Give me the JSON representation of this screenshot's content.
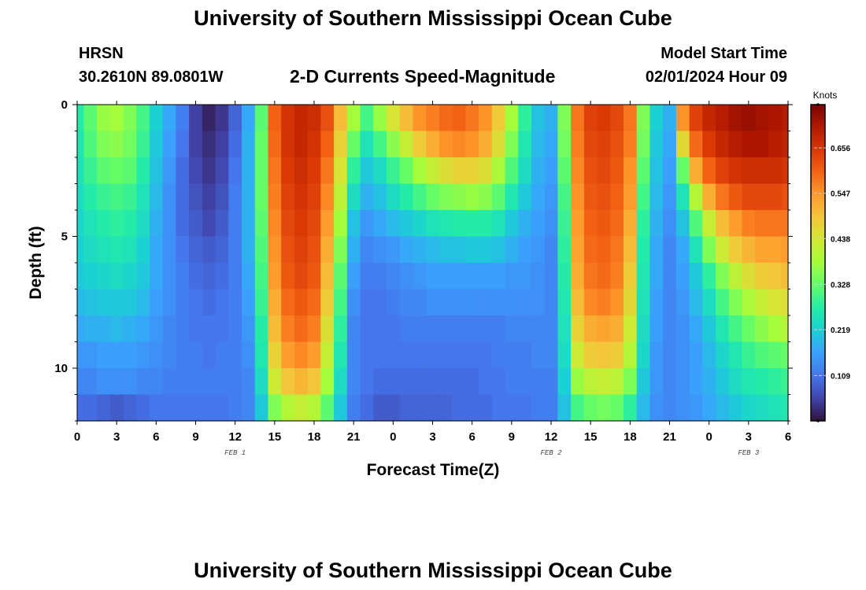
{
  "page": {
    "title_top": "University of Southern Mississippi Ocean Cube",
    "title_bottom": "University of Southern Mississippi Ocean Cube",
    "station": "HRSN",
    "coords": "30.2610N  89.0801W",
    "plot_title": "2-D Currents Speed-Magnitude",
    "model_label": "Model Start Time",
    "model_time": "02/01/2024 Hour 09"
  },
  "chart_data": {
    "type": "heatmap",
    "title": "2-D Currents Speed-Magnitude",
    "xlabel": "Forecast Time(Z)",
    "ylabel": "Depth (ft)",
    "x_tick_labels": [
      "0",
      "3",
      "6",
      "9",
      "12",
      "15",
      "18",
      "21",
      "0",
      "3",
      "6",
      "9",
      "12",
      "15",
      "18",
      "21",
      "0",
      "3",
      "6"
    ],
    "x_day_labels": [
      {
        "label": "FEB 1",
        "hour": 12
      },
      {
        "label": "FEB 2",
        "hour": 36
      },
      {
        "label": "FEB 3",
        "hour": 51
      }
    ],
    "x_range_hours": [
      0,
      54
    ],
    "y_ticks": [
      0,
      5,
      10
    ],
    "y_range_ft": [
      0,
      12
    ],
    "y_inverted": true,
    "colorbar_unit": "Knots",
    "colorbar_ticks": [
      0.109,
      0.219,
      0.328,
      0.438,
      0.547,
      0.656
    ],
    "value_range": [
      0.0,
      0.76
    ],
    "colormap": [
      "#30123b",
      "#4145ab",
      "#4675ed",
      "#39a2fc",
      "#1bcfd4",
      "#24eca6",
      "#61fc6c",
      "#a4fc3b",
      "#d1e834",
      "#f3c63a",
      "#fe9b2d",
      "#f36315",
      "#d93806",
      "#b11901",
      "#7a0402"
    ],
    "grid_rows_depth": "12 layers from 0 to 12 ft",
    "grid_cols_time": "hourly from 0 to 54 h",
    "speed_matrix_by_depth_knots": {
      "0.5": [
        0.27,
        0.32,
        0.37,
        0.38,
        0.35,
        0.3,
        0.22,
        0.17,
        0.12,
        0.05,
        0.02,
        0.04,
        0.09,
        0.17,
        0.32,
        0.6,
        0.66,
        0.68,
        0.67,
        0.62,
        0.5,
        0.38,
        0.3,
        0.37,
        0.44,
        0.5,
        0.55,
        0.57,
        0.59,
        0.6,
        0.58,
        0.55,
        0.48,
        0.38,
        0.28,
        0.2,
        0.18,
        0.35,
        0.58,
        0.64,
        0.65,
        0.63,
        0.58,
        0.35,
        0.22,
        0.18,
        0.55,
        0.64,
        0.68,
        0.7,
        0.72,
        0.73,
        0.72,
        0.71,
        0.7
      ],
      "1.5": [
        0.26,
        0.31,
        0.35,
        0.36,
        0.34,
        0.29,
        0.21,
        0.16,
        0.11,
        0.05,
        0.03,
        0.05,
        0.1,
        0.18,
        0.33,
        0.59,
        0.66,
        0.68,
        0.66,
        0.6,
        0.47,
        0.33,
        0.25,
        0.3,
        0.36,
        0.42,
        0.48,
        0.52,
        0.55,
        0.56,
        0.55,
        0.52,
        0.45,
        0.35,
        0.26,
        0.19,
        0.17,
        0.34,
        0.57,
        0.63,
        0.64,
        0.62,
        0.57,
        0.34,
        0.21,
        0.17,
        0.46,
        0.59,
        0.65,
        0.68,
        0.7,
        0.71,
        0.71,
        0.7,
        0.69
      ],
      "2.5": [
        0.25,
        0.29,
        0.32,
        0.33,
        0.32,
        0.27,
        0.2,
        0.15,
        0.1,
        0.06,
        0.04,
        0.06,
        0.11,
        0.18,
        0.33,
        0.58,
        0.65,
        0.67,
        0.65,
        0.58,
        0.44,
        0.28,
        0.21,
        0.24,
        0.29,
        0.33,
        0.38,
        0.42,
        0.45,
        0.47,
        0.47,
        0.45,
        0.39,
        0.31,
        0.24,
        0.18,
        0.16,
        0.32,
        0.56,
        0.62,
        0.63,
        0.61,
        0.55,
        0.32,
        0.2,
        0.16,
        0.33,
        0.52,
        0.6,
        0.64,
        0.66,
        0.67,
        0.67,
        0.67,
        0.66
      ],
      "3.5": [
        0.24,
        0.27,
        0.29,
        0.3,
        0.29,
        0.25,
        0.19,
        0.14,
        0.1,
        0.07,
        0.05,
        0.07,
        0.12,
        0.18,
        0.33,
        0.57,
        0.64,
        0.66,
        0.64,
        0.56,
        0.41,
        0.24,
        0.18,
        0.2,
        0.24,
        0.27,
        0.3,
        0.33,
        0.35,
        0.36,
        0.37,
        0.36,
        0.32,
        0.26,
        0.21,
        0.17,
        0.15,
        0.3,
        0.55,
        0.61,
        0.62,
        0.6,
        0.54,
        0.3,
        0.19,
        0.15,
        0.25,
        0.4,
        0.52,
        0.58,
        0.61,
        0.63,
        0.63,
        0.63,
        0.62
      ],
      "4.5": [
        0.23,
        0.25,
        0.27,
        0.28,
        0.27,
        0.24,
        0.18,
        0.14,
        0.1,
        0.08,
        0.06,
        0.08,
        0.12,
        0.18,
        0.32,
        0.56,
        0.63,
        0.65,
        0.63,
        0.54,
        0.38,
        0.2,
        0.15,
        0.17,
        0.19,
        0.21,
        0.23,
        0.25,
        0.26,
        0.27,
        0.27,
        0.27,
        0.25,
        0.21,
        0.18,
        0.16,
        0.14,
        0.29,
        0.54,
        0.6,
        0.61,
        0.59,
        0.52,
        0.28,
        0.18,
        0.14,
        0.2,
        0.31,
        0.42,
        0.5,
        0.54,
        0.57,
        0.58,
        0.58,
        0.58
      ],
      "5.5": [
        0.22,
        0.24,
        0.25,
        0.26,
        0.25,
        0.22,
        0.17,
        0.14,
        0.11,
        0.09,
        0.08,
        0.09,
        0.12,
        0.18,
        0.31,
        0.55,
        0.62,
        0.64,
        0.62,
        0.52,
        0.35,
        0.18,
        0.13,
        0.14,
        0.15,
        0.17,
        0.18,
        0.19,
        0.2,
        0.2,
        0.21,
        0.21,
        0.2,
        0.18,
        0.16,
        0.15,
        0.13,
        0.28,
        0.53,
        0.59,
        0.6,
        0.58,
        0.5,
        0.27,
        0.17,
        0.13,
        0.17,
        0.25,
        0.35,
        0.43,
        0.48,
        0.51,
        0.53,
        0.53,
        0.54
      ],
      "6.5": [
        0.21,
        0.22,
        0.23,
        0.24,
        0.23,
        0.21,
        0.17,
        0.14,
        0.12,
        0.1,
        0.09,
        0.1,
        0.12,
        0.17,
        0.3,
        0.54,
        0.61,
        0.63,
        0.61,
        0.5,
        0.32,
        0.16,
        0.12,
        0.12,
        0.13,
        0.14,
        0.15,
        0.16,
        0.16,
        0.16,
        0.16,
        0.16,
        0.16,
        0.15,
        0.15,
        0.14,
        0.13,
        0.27,
        0.52,
        0.58,
        0.59,
        0.57,
        0.48,
        0.26,
        0.17,
        0.13,
        0.16,
        0.21,
        0.28,
        0.35,
        0.41,
        0.45,
        0.48,
        0.49,
        0.5
      ],
      "7.5": [
        0.19,
        0.2,
        0.21,
        0.21,
        0.21,
        0.19,
        0.16,
        0.14,
        0.12,
        0.11,
        0.1,
        0.11,
        0.12,
        0.16,
        0.29,
        0.52,
        0.59,
        0.61,
        0.59,
        0.48,
        0.3,
        0.14,
        0.11,
        0.11,
        0.12,
        0.13,
        0.13,
        0.14,
        0.14,
        0.14,
        0.14,
        0.14,
        0.14,
        0.14,
        0.14,
        0.14,
        0.13,
        0.26,
        0.5,
        0.56,
        0.57,
        0.55,
        0.46,
        0.25,
        0.16,
        0.13,
        0.15,
        0.19,
        0.24,
        0.3,
        0.35,
        0.39,
        0.42,
        0.44,
        0.45
      ],
      "8.5": [
        0.17,
        0.18,
        0.18,
        0.19,
        0.18,
        0.17,
        0.15,
        0.13,
        0.12,
        0.11,
        0.11,
        0.11,
        0.12,
        0.15,
        0.27,
        0.5,
        0.57,
        0.59,
        0.57,
        0.45,
        0.28,
        0.13,
        0.11,
        0.11,
        0.11,
        0.12,
        0.12,
        0.12,
        0.12,
        0.12,
        0.12,
        0.12,
        0.12,
        0.13,
        0.13,
        0.13,
        0.13,
        0.25,
        0.47,
        0.52,
        0.53,
        0.52,
        0.43,
        0.24,
        0.16,
        0.13,
        0.14,
        0.17,
        0.21,
        0.26,
        0.3,
        0.33,
        0.36,
        0.38,
        0.4
      ],
      "9.5": [
        0.15,
        0.15,
        0.16,
        0.16,
        0.16,
        0.15,
        0.14,
        0.13,
        0.12,
        0.12,
        0.11,
        0.12,
        0.12,
        0.14,
        0.26,
        0.47,
        0.54,
        0.56,
        0.54,
        0.42,
        0.26,
        0.13,
        0.11,
        0.11,
        0.11,
        0.11,
        0.11,
        0.11,
        0.11,
        0.11,
        0.11,
        0.11,
        0.12,
        0.12,
        0.12,
        0.13,
        0.13,
        0.24,
        0.43,
        0.48,
        0.49,
        0.48,
        0.4,
        0.23,
        0.15,
        0.13,
        0.14,
        0.16,
        0.19,
        0.23,
        0.26,
        0.29,
        0.31,
        0.32,
        0.33
      ],
      "10.5": [
        0.13,
        0.13,
        0.14,
        0.14,
        0.14,
        0.13,
        0.13,
        0.12,
        0.12,
        0.12,
        0.12,
        0.12,
        0.12,
        0.13,
        0.24,
        0.43,
        0.49,
        0.51,
        0.49,
        0.38,
        0.24,
        0.13,
        0.11,
        0.1,
        0.1,
        0.1,
        0.1,
        0.1,
        0.1,
        0.1,
        0.1,
        0.11,
        0.11,
        0.12,
        0.12,
        0.12,
        0.12,
        0.22,
        0.37,
        0.41,
        0.42,
        0.41,
        0.35,
        0.21,
        0.15,
        0.13,
        0.14,
        0.16,
        0.18,
        0.21,
        0.24,
        0.26,
        0.27,
        0.28,
        0.29
      ],
      "11.5": [
        0.1,
        0.1,
        0.09,
        0.08,
        0.09,
        0.1,
        0.11,
        0.11,
        0.11,
        0.11,
        0.11,
        0.11,
        0.12,
        0.13,
        0.21,
        0.35,
        0.4,
        0.42,
        0.4,
        0.32,
        0.21,
        0.12,
        0.1,
        0.08,
        0.08,
        0.09,
        0.09,
        0.09,
        0.09,
        0.1,
        0.1,
        0.1,
        0.11,
        0.11,
        0.11,
        0.12,
        0.12,
        0.2,
        0.3,
        0.33,
        0.34,
        0.33,
        0.28,
        0.19,
        0.14,
        0.13,
        0.14,
        0.15,
        0.17,
        0.19,
        0.21,
        0.23,
        0.24,
        0.25,
        0.26
      ]
    }
  }
}
